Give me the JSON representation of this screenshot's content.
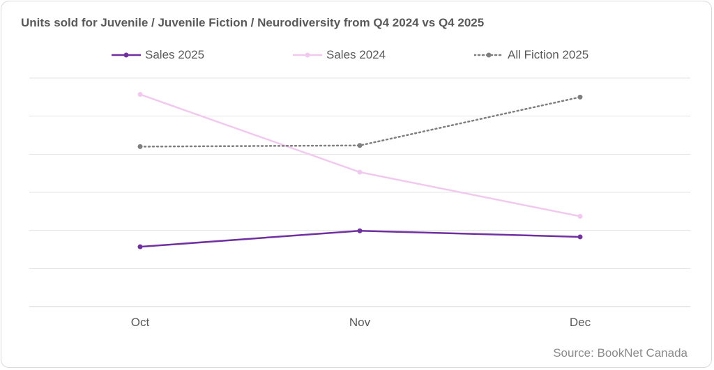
{
  "chart_data": {
    "type": "line",
    "title": "Units sold for Juvenile / Juvenile Fiction / Neurodiversity from Q4 2024 vs Q4 2025",
    "categories": [
      "Oct",
      "Nov",
      "Dec"
    ],
    "ylim": [
      0,
      6
    ],
    "grid": true,
    "legend_position": "top",
    "series": [
      {
        "name": "Sales 2025",
        "values": [
          1.57,
          1.99,
          1.83
        ],
        "color": "#7030a0",
        "style": "solid",
        "width": 2.5
      },
      {
        "name": "Sales 2024",
        "values": [
          5.57,
          3.53,
          2.37
        ],
        "color": "#f2c9ee",
        "style": "solid",
        "width": 2.5
      },
      {
        "name": "All Fiction 2025",
        "values": [
          4.2,
          4.23,
          5.5
        ],
        "color": "#7f7f7f",
        "style": "dotted",
        "width": 2.5
      }
    ],
    "source": "Source: BookNet Canada"
  }
}
